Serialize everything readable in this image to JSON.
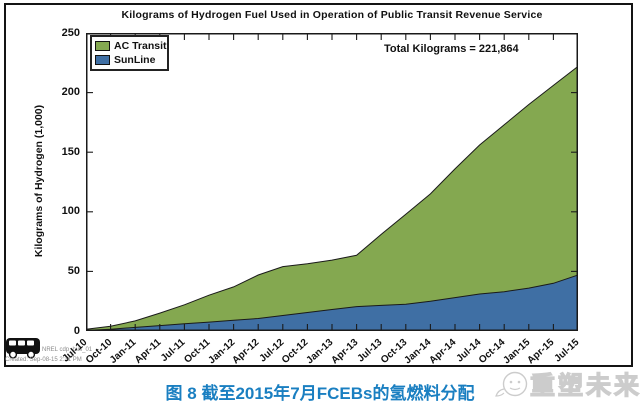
{
  "figure": {
    "title": "Kilograms of Hydrogen Fuel Used in Operation of Public Transit Revenue Service",
    "annotation": "Total Kilograms = 221,864",
    "ylabel": "Kilograms of Hydrogen (1,000)",
    "legend": [
      {
        "label": "AC Transit",
        "color": "#84a850"
      },
      {
        "label": "SunLine",
        "color": "#3f6fa4"
      }
    ],
    "stamp": {
      "line1": "NREL cdp_bus_01",
      "line2": "Created: Sep-08-15  2:31 PM"
    }
  },
  "caption": {
    "text": "图 8 截至2015年7月FCEBs的氢燃料分配",
    "color": "#1a7fc1"
  },
  "watermark": {
    "text": "重塑未来"
  },
  "chart_data": {
    "type": "area",
    "stacked": true,
    "title": "Kilograms of Hydrogen Fuel Used in Operation of Public Transit Revenue Service",
    "xlabel": "",
    "ylabel": "Kilograms of Hydrogen (1,000)",
    "annotation": "Total Kilograms = 221,864",
    "ylim": [
      0,
      250
    ],
    "yticks": [
      0,
      50,
      100,
      150,
      200,
      250
    ],
    "grid": false,
    "legend_position": "top-left",
    "categories": [
      "Jul-10",
      "Oct-10",
      "Jan-11",
      "Apr-11",
      "Jul-11",
      "Oct-11",
      "Jan-12",
      "Apr-12",
      "Jul-12",
      "Oct-12",
      "Jan-13",
      "Apr-13",
      "Jul-13",
      "Oct-13",
      "Jan-14",
      "Apr-14",
      "Jul-14",
      "Oct-14",
      "Jan-15",
      "Apr-15",
      "Jul-15"
    ],
    "series": [
      {
        "name": "SunLine",
        "color": "#3f6fa4",
        "values": [
          0.5,
          1.5,
          3,
          4.5,
          6,
          7.5,
          9,
          10.5,
          13,
          15.5,
          18,
          20.5,
          21.5,
          22.5,
          25,
          28,
          31,
          33,
          36,
          40,
          47
        ]
      },
      {
        "name": "AC Transit",
        "color": "#84a850",
        "values": [
          1,
          2.5,
          5.5,
          10.5,
          16,
          22.5,
          28,
          36.5,
          41,
          41,
          41.5,
          43,
          59.5,
          75.5,
          90,
          108,
          125,
          140,
          154,
          166,
          175
        ]
      }
    ],
    "stacked_totals": [
      1.5,
      4,
      8.5,
      15,
      22,
      30,
      37,
      47,
      54,
      56.5,
      59.5,
      63.5,
      81,
      98,
      115,
      136,
      156,
      173,
      190,
      206,
      222
    ]
  }
}
